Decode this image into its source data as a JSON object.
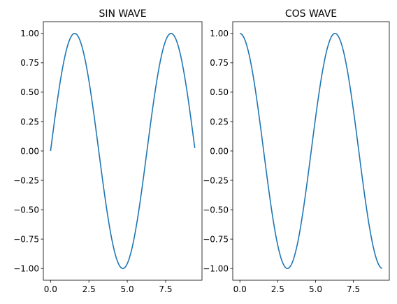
{
  "chart_data": [
    {
      "type": "line",
      "title": "SIN WAVE",
      "function": "sin",
      "x_range": [
        0,
        9.4
      ],
      "xlim": [
        -0.47,
        9.87
      ],
      "ylim": [
        -1.1,
        1.1
      ],
      "xticks": [
        0.0,
        2.5,
        5.0,
        7.5
      ],
      "xtick_labels": [
        "0.0",
        "2.5",
        "5.0",
        "7.5"
      ],
      "yticks": [
        1.0,
        0.75,
        0.5,
        0.25,
        0.0,
        -0.25,
        -0.5,
        -0.75,
        -1.0
      ],
      "ytick_labels": [
        "1.00",
        "0.75",
        "0.50",
        "0.25",
        "0.00",
        "−0.25",
        "−0.50",
        "−0.75",
        "−1.00"
      ],
      "series": [
        {
          "color": "#1f77b4",
          "x": [
            0,
            0.5,
            1.0,
            1.5708,
            2.0,
            2.5,
            3.0,
            3.1416,
            3.5,
            4.0,
            4.5,
            4.7124,
            5.0,
            5.5,
            6.0,
            6.2832,
            6.5,
            7.0,
            7.5,
            7.854,
            8.0,
            8.5,
            9.0,
            9.4
          ],
          "y": [
            0,
            0.479,
            0.841,
            1.0,
            0.909,
            0.598,
            0.141,
            0.0,
            -0.351,
            -0.757,
            -0.978,
            -1.0,
            -0.959,
            -0.706,
            -0.279,
            0.0,
            0.215,
            0.657,
            0.938,
            1.0,
            0.989,
            0.798,
            0.412,
            0.025
          ]
        }
      ]
    },
    {
      "type": "line",
      "title": "COS WAVE",
      "function": "cos",
      "x_range": [
        0,
        9.4
      ],
      "xlim": [
        -0.47,
        9.87
      ],
      "ylim": [
        -1.1,
        1.1
      ],
      "xticks": [
        0.0,
        2.5,
        5.0,
        7.5
      ],
      "xtick_labels": [
        "0.0",
        "2.5",
        "5.0",
        "7.5"
      ],
      "yticks": [
        1.0,
        0.75,
        0.5,
        0.25,
        0.0,
        -0.25,
        -0.5,
        -0.75,
        -1.0
      ],
      "ytick_labels": [
        "1.00",
        "0.75",
        "0.50",
        "0.25",
        "0.00",
        "−0.25",
        "−0.50",
        "−0.75",
        "−1.00"
      ],
      "series": [
        {
          "color": "#1f77b4",
          "x": [
            0,
            0.5,
            1.0,
            1.5708,
            2.0,
            2.5,
            3.0,
            3.1416,
            3.5,
            4.0,
            4.5,
            4.7124,
            5.0,
            5.5,
            6.0,
            6.2832,
            6.5,
            7.0,
            7.5,
            7.854,
            8.0,
            8.5,
            9.0,
            9.4
          ],
          "y": [
            1.0,
            0.878,
            0.54,
            0.0,
            -0.416,
            -0.801,
            -0.99,
            -1.0,
            -0.936,
            -0.654,
            -0.211,
            0.0,
            0.284,
            0.709,
            0.96,
            1.0,
            0.977,
            0.754,
            0.347,
            0.0,
            -0.146,
            -0.602,
            -0.911,
            -0.999
          ]
        }
      ]
    }
  ]
}
